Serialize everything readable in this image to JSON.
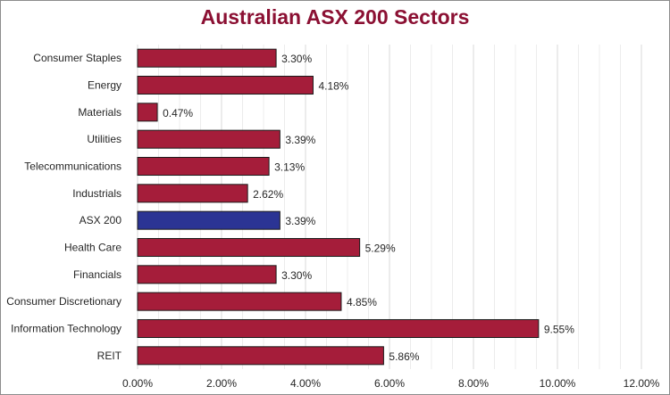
{
  "chart_data": {
    "type": "bar",
    "orientation": "horizontal",
    "title": "Australian ASX 200 Sectors",
    "xlabel": "",
    "ylabel": "",
    "categories": [
      "Consumer Staples",
      "Energy",
      "Materials",
      "Utilities",
      "Telecommunications",
      "Industrials",
      "ASX 200",
      "Health Care",
      "Financials",
      "Consumer Discretionary",
      "Information Technology",
      "REIT"
    ],
    "values": [
      3.3,
      4.18,
      0.47,
      3.39,
      3.13,
      2.62,
      3.39,
      5.29,
      3.3,
      4.85,
      9.55,
      5.86
    ],
    "data_labels": [
      "3.30%",
      "4.18%",
      "0.47%",
      "3.39%",
      "3.13%",
      "2.62%",
      "3.39%",
      "5.29%",
      "3.30%",
      "4.85%",
      "9.55%",
      "5.86%"
    ],
    "xlim": [
      0,
      12
    ],
    "x_ticks": [
      "0.00%",
      "2.00%",
      "4.00%",
      "6.00%",
      "8.00%",
      "10.00%",
      "12.00%"
    ],
    "grid": true,
    "legend": "none",
    "colors": {
      "default_bar": "#a51d3a",
      "highlight_bar": "#2b3494",
      "highlight_category": "ASX 200",
      "title": "#8b1033"
    }
  }
}
